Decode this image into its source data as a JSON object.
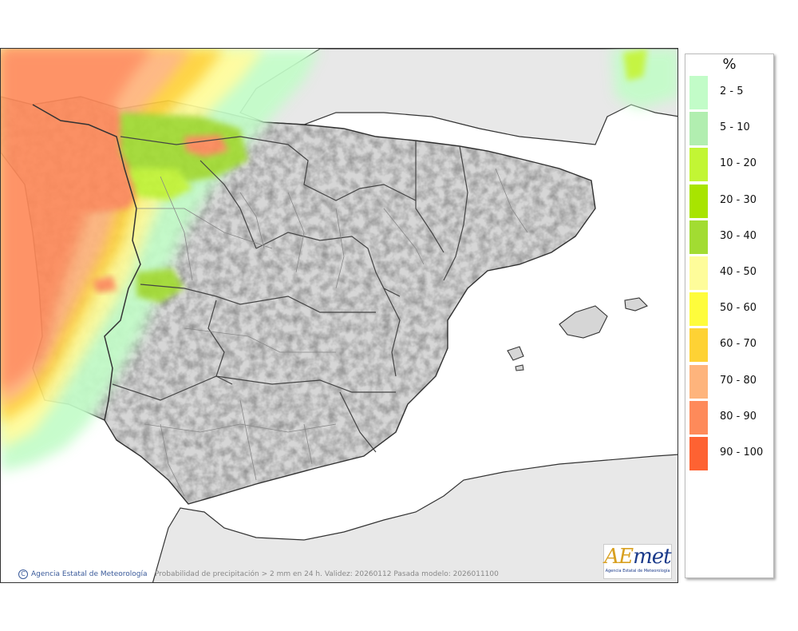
{
  "credit": {
    "copyright_symbol": "C",
    "text": "Agencia Estatal de Meteorología"
  },
  "caption": "Probabilidad de precipitación > 2 mm en 24 h. Validez: 20260112 Pasada modelo: 2026011100",
  "logo": {
    "word_a": "A",
    "word_e": "E",
    "word_rest": "met",
    "subtitle": "Agencia Estatal de Meteorología"
  },
  "legend": {
    "unit": "%",
    "items": [
      {
        "label": "2 - 5",
        "color": "#c2fcc8"
      },
      {
        "label": "5 - 10",
        "color": "#b1eeb0"
      },
      {
        "label": "10 - 20",
        "color": "#c2f634"
      },
      {
        "label": "20 - 30",
        "color": "#a8e400"
      },
      {
        "label": "30 - 40",
        "color": "#a2dc32"
      },
      {
        "label": "40 - 50",
        "color": "#fefc9a"
      },
      {
        "label": "50 - 60",
        "color": "#fefc3c"
      },
      {
        "label": "60 - 70",
        "color": "#fed234"
      },
      {
        "label": "70 - 80",
        "color": "#feb47c"
      },
      {
        "label": "80 - 90",
        "color": "#fe8a5a"
      },
      {
        "label": "90 - 100",
        "color": "#fe6232"
      }
    ]
  },
  "colors": {
    "sea": "#ffffff",
    "land": "#d6d6d6",
    "foreign_land": "#e8e8e8",
    "coast": "#333333",
    "borders": "#888888"
  }
}
